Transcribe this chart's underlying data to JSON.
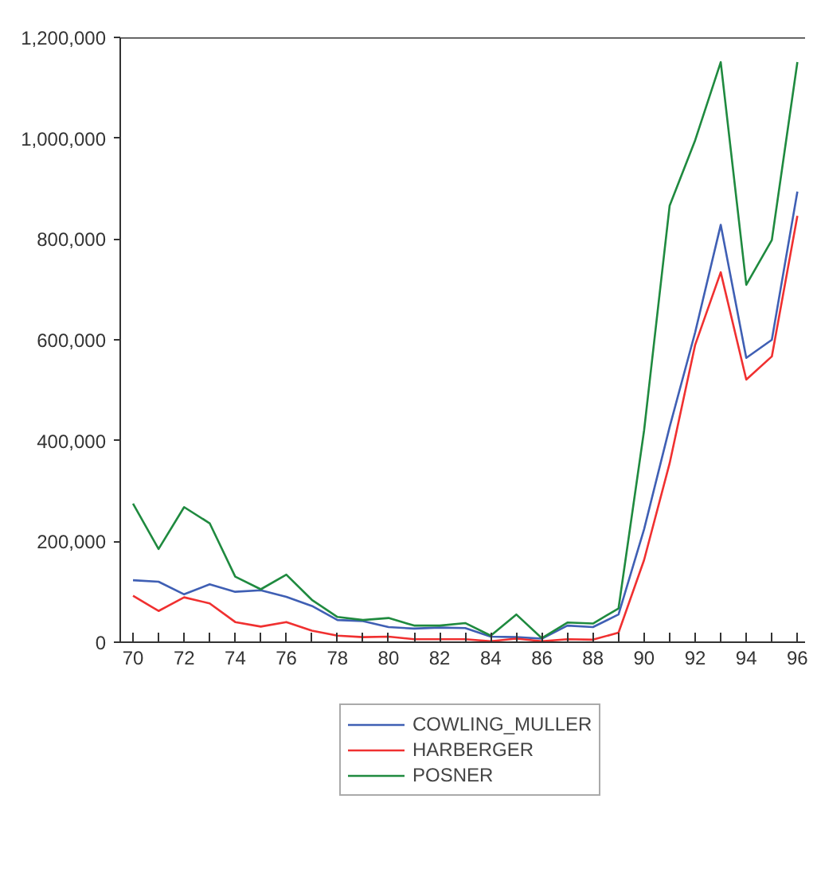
{
  "chart_data": {
    "type": "line",
    "x": [
      70,
      71,
      72,
      73,
      74,
      75,
      76,
      77,
      78,
      79,
      80,
      81,
      82,
      83,
      84,
      85,
      86,
      87,
      88,
      89,
      90,
      91,
      92,
      93,
      94,
      95,
      96
    ],
    "series": [
      {
        "name": "COWLING_MULLER",
        "color": "#3f5fb4",
        "values": [
          123000,
          120000,
          95000,
          115000,
          100000,
          103000,
          90000,
          72000,
          44000,
          42000,
          30000,
          27000,
          29000,
          28000,
          11000,
          10000,
          7000,
          33000,
          30000,
          55000,
          224000,
          427000,
          615000,
          828000,
          564000,
          600000,
          894000
        ]
      },
      {
        "name": "HARBERGER",
        "color": "#f03030",
        "values": [
          92000,
          62000,
          89000,
          77000,
          40000,
          31000,
          40000,
          23000,
          13000,
          10000,
          11000,
          6000,
          6000,
          6000,
          2000,
          7000,
          2000,
          6000,
          5000,
          19000,
          163000,
          355000,
          590000,
          734000,
          521000,
          567000,
          846000
        ]
      },
      {
        "name": "POSNER",
        "color": "#1f8a3f",
        "values": [
          275000,
          185000,
          268000,
          236000,
          130000,
          105000,
          134000,
          84000,
          50000,
          44000,
          48000,
          33000,
          33000,
          38000,
          13000,
          55000,
          8000,
          39000,
          37000,
          67000,
          420000,
          866000,
          996000,
          1151000,
          709000,
          798000,
          1151000
        ]
      }
    ],
    "xlim": [
      69.5,
      96.3
    ],
    "xticks": [
      70,
      {
        "value": 71,
        "label": null
      },
      72,
      {
        "value": 73,
        "label": null
      },
      74,
      {
        "value": 75,
        "label": null
      },
      76,
      {
        "value": 77,
        "label": null
      },
      78,
      {
        "value": 79,
        "label": null
      },
      80,
      {
        "value": 81,
        "label": null
      },
      82,
      {
        "value": 83,
        "label": null
      },
      84,
      {
        "value": 85,
        "label": null
      },
      86,
      {
        "value": 87,
        "label": null
      },
      88,
      {
        "value": 89,
        "label": null
      },
      90,
      {
        "value": 91,
        "label": null
      },
      92,
      {
        "value": 93,
        "label": null
      },
      94,
      {
        "value": 95,
        "label": null
      },
      96
    ],
    "ylim": [
      0,
      1200000
    ],
    "yticks": [
      0,
      {
        "value": 200000,
        "label": "200,000"
      },
      {
        "value": 400000,
        "label": "400,000"
      },
      {
        "value": 600000,
        "label": "600,000"
      },
      {
        "value": 800000,
        "label": "800,000"
      },
      {
        "value": 1000000,
        "label": "1,000,000"
      },
      {
        "value": 1200000,
        "label": "1,200,000"
      }
    ],
    "grid": false,
    "legend": "bottom",
    "line_style": "solid",
    "marker": "none"
  }
}
